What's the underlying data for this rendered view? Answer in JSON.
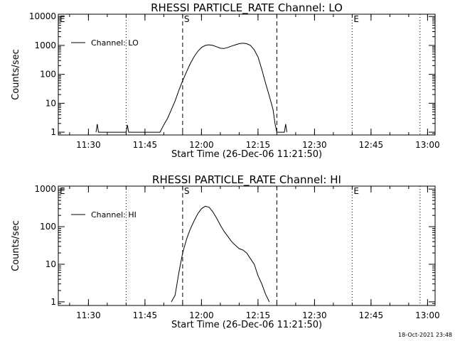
{
  "footer": {
    "timestamp": "18-Oct-2021 23:48"
  },
  "chart_data": [
    {
      "type": "line",
      "title": "RHESSI PARTICLE_RATE Channel: LO",
      "xlabel": "Start Time (26-Dec-06 11:21:50)",
      "ylabel": "Counts/sec",
      "yscale": "log",
      "ylim": [
        0.8,
        12000
      ],
      "xlim": [
        "11:22",
        "13:02"
      ],
      "x_ticks": [
        "11:30",
        "11:45",
        "12:00",
        "12:15",
        "12:30",
        "12:45",
        "13:00"
      ],
      "y_ticks": [
        "1",
        "10",
        "100",
        "1000",
        "10000"
      ],
      "legend": {
        "position": "top-left"
      },
      "markers": [
        {
          "label": "E",
          "time": "11:22",
          "style": "dotted"
        },
        {
          "label": "",
          "time": "11:40",
          "style": "dotted"
        },
        {
          "label": "S",
          "time": "11:55",
          "style": "dashed"
        },
        {
          "label": "",
          "time": "12:20",
          "style": "dashed"
        },
        {
          "label": "E",
          "time": "12:40",
          "style": "dotted"
        },
        {
          "label": "",
          "time": "12:58",
          "style": "dotted"
        }
      ],
      "series": [
        {
          "name": "Channel: LO",
          "x": [
            "11:32",
            "11:32:20",
            "11:32:40",
            "11:40",
            "11:40:20",
            "11:40:40",
            "11:49",
            "11:50",
            "11:51",
            "11:52",
            "11:53",
            "11:54",
            "11:55",
            "11:56",
            "11:57",
            "11:58",
            "11:59",
            "12:00",
            "12:01",
            "12:02",
            "12:03",
            "12:04",
            "12:05",
            "12:06",
            "12:07",
            "12:08",
            "12:09",
            "12:10",
            "12:11",
            "12:12",
            "12:13",
            "12:14",
            "12:15",
            "12:16",
            "12:17",
            "12:18",
            "12:19",
            "12:19:30",
            "12:20",
            "12:22",
            "12:22:20",
            "12:22:40"
          ],
          "y": [
            1,
            1.9,
            1,
            1,
            1.8,
            1,
            1,
            1.8,
            3,
            6,
            12,
            28,
            60,
            120,
            230,
            400,
            620,
            850,
            1000,
            1050,
            1000,
            900,
            800,
            780,
            850,
            950,
            1050,
            1150,
            1200,
            1150,
            1000,
            700,
            400,
            150,
            50,
            18,
            6,
            2,
            1,
            1,
            1.9,
            1
          ]
        }
      ]
    },
    {
      "type": "line",
      "title": "RHESSI PARTICLE_RATE Channel: HI",
      "xlabel": "Start Time (26-Dec-06 11:21:50)",
      "ylabel": "Counts/sec",
      "yscale": "log",
      "ylim": [
        0.8,
        1200
      ],
      "xlim": [
        "11:22",
        "13:02"
      ],
      "x_ticks": [
        "11:30",
        "11:45",
        "12:00",
        "12:15",
        "12:30",
        "12:45",
        "13:00"
      ],
      "y_ticks": [
        "1",
        "10",
        "100",
        "1000"
      ],
      "legend": {
        "position": "top-left"
      },
      "markers": [
        {
          "label": "E",
          "time": "11:22",
          "style": "dotted"
        },
        {
          "label": "",
          "time": "11:40",
          "style": "dotted"
        },
        {
          "label": "S",
          "time": "11:55",
          "style": "dashed"
        },
        {
          "label": "",
          "time": "12:20",
          "style": "dashed"
        },
        {
          "label": "E",
          "time": "12:40",
          "style": "dotted"
        },
        {
          "label": "",
          "time": "12:58",
          "style": "dotted"
        }
      ],
      "series": [
        {
          "name": "Channel: HI",
          "x": [
            "11:52",
            "11:53",
            "11:54",
            "11:55",
            "11:56",
            "11:57",
            "11:58",
            "11:59",
            "12:00",
            "12:01",
            "12:02",
            "12:03",
            "12:04",
            "12:05",
            "12:06",
            "12:07",
            "12:08",
            "12:09",
            "12:10",
            "12:11",
            "12:12",
            "12:13",
            "12:14",
            "12:15",
            "12:16",
            "12:17",
            "12:18"
          ],
          "y": [
            1,
            1.5,
            6,
            20,
            45,
            85,
            140,
            220,
            300,
            350,
            330,
            250,
            170,
            110,
            75,
            55,
            40,
            32,
            26,
            24,
            20,
            14,
            10,
            5,
            3,
            1.6,
            1
          ]
        }
      ]
    }
  ]
}
